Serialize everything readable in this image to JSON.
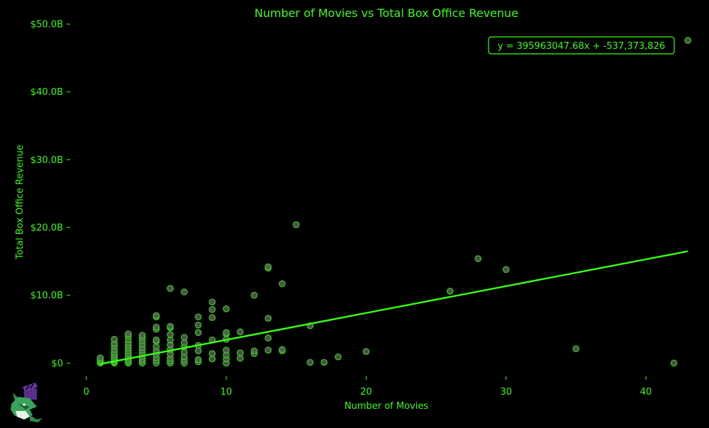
{
  "colors": {
    "background": "#000000",
    "accent": "#39ff14",
    "marker_fill": "#5a5a5a",
    "marker_edge": "#2fd012",
    "logo_purple": "#5b2d8e",
    "logo_green": "#3aa35a"
  },
  "logo": {
    "icon": "fox-mascot-with-clapperboard-icon"
  },
  "chart_data": {
    "type": "scatter",
    "title": "Number of Movies vs Total Box Office Revenue",
    "xlabel": "Number of Movies",
    "ylabel": "Total Box Office Revenue",
    "xlim": [
      -1,
      44
    ],
    "ylim": [
      -0.8,
      50
    ],
    "y_unit": "billions USD",
    "x_ticks": [
      0,
      10,
      20,
      30,
      40
    ],
    "y_ticks": [
      0,
      10,
      20,
      30,
      40,
      50
    ],
    "y_tick_labels": [
      "$0",
      "$10.0B",
      "$20.0B",
      "$30.0B",
      "$40.0B",
      "$50.0B"
    ],
    "grid": false,
    "trendline": {
      "equation_label": "y = 395963047.68x + -537,373,826",
      "slope": 0.39596304768,
      "intercept": -0.537373826,
      "x_range": [
        1,
        43
      ]
    },
    "points": [
      [
        1,
        0.0
      ],
      [
        1,
        0.1
      ],
      [
        1,
        0.2
      ],
      [
        1,
        0.35
      ],
      [
        1,
        0.55
      ],
      [
        1,
        0.75
      ],
      [
        2,
        0.0
      ],
      [
        2,
        0.15
      ],
      [
        2,
        0.3
      ],
      [
        2,
        0.5
      ],
      [
        2,
        0.75
      ],
      [
        2,
        1.0
      ],
      [
        2,
        1.3
      ],
      [
        2,
        1.6
      ],
      [
        2,
        2.0
      ],
      [
        2,
        2.5
      ],
      [
        2,
        2.9
      ],
      [
        2,
        3.5
      ],
      [
        3,
        0.0
      ],
      [
        3,
        0.2
      ],
      [
        3,
        0.45
      ],
      [
        3,
        0.7
      ],
      [
        3,
        1.0
      ],
      [
        3,
        1.4
      ],
      [
        3,
        1.8
      ],
      [
        3,
        2.2
      ],
      [
        3,
        2.6
      ],
      [
        3,
        3.0
      ],
      [
        3,
        3.5
      ],
      [
        3,
        4.0
      ],
      [
        3,
        4.3
      ],
      [
        4,
        0.0
      ],
      [
        4,
        0.3
      ],
      [
        4,
        0.6
      ],
      [
        4,
        1.0
      ],
      [
        4,
        1.4
      ],
      [
        4,
        1.9
      ],
      [
        4,
        2.3
      ],
      [
        4,
        2.8
      ],
      [
        4,
        3.3
      ],
      [
        4,
        3.8
      ],
      [
        4,
        4.1
      ],
      [
        5,
        0.0
      ],
      [
        5,
        0.4
      ],
      [
        5,
        0.8
      ],
      [
        5,
        1.3
      ],
      [
        5,
        1.8
      ],
      [
        5,
        2.4
      ],
      [
        5,
        3.2
      ],
      [
        5,
        3.4
      ],
      [
        5,
        5.0
      ],
      [
        5,
        5.3
      ],
      [
        5,
        6.8
      ],
      [
        5,
        7.0
      ],
      [
        6,
        0.0
      ],
      [
        6,
        0.3
      ],
      [
        6,
        0.7
      ],
      [
        6,
        1.3
      ],
      [
        6,
        2.0
      ],
      [
        6,
        2.7
      ],
      [
        6,
        3.4
      ],
      [
        6,
        4.2
      ],
      [
        6,
        5.2
      ],
      [
        6,
        5.4
      ],
      [
        6,
        11.0
      ],
      [
        7,
        0.0
      ],
      [
        7,
        0.4
      ],
      [
        7,
        0.9
      ],
      [
        7,
        1.6
      ],
      [
        7,
        2.4
      ],
      [
        7,
        3.0
      ],
      [
        7,
        3.8
      ],
      [
        7,
        10.5
      ],
      [
        8,
        0.2
      ],
      [
        8,
        0.5
      ],
      [
        8,
        1.8
      ],
      [
        8,
        2.6
      ],
      [
        8,
        4.5
      ],
      [
        8,
        5.6
      ],
      [
        8,
        6.8
      ],
      [
        9,
        0.6
      ],
      [
        9,
        1.4
      ],
      [
        9,
        3.4
      ],
      [
        9,
        6.7
      ],
      [
        9,
        7.9
      ],
      [
        9,
        9.0
      ],
      [
        10,
        0.0
      ],
      [
        10,
        0.6
      ],
      [
        10,
        1.2
      ],
      [
        10,
        1.9
      ],
      [
        10,
        3.5
      ],
      [
        10,
        4.3
      ],
      [
        10,
        4.5
      ],
      [
        10,
        8.0
      ],
      [
        11,
        0.7
      ],
      [
        11,
        1.5
      ],
      [
        11,
        4.6
      ],
      [
        12,
        1.4
      ],
      [
        12,
        1.8
      ],
      [
        12,
        10.0
      ],
      [
        13,
        1.9
      ],
      [
        13,
        3.7
      ],
      [
        13,
        6.6
      ],
      [
        13,
        14.0
      ],
      [
        13,
        14.2
      ],
      [
        14,
        1.8
      ],
      [
        14,
        2.0
      ],
      [
        14,
        11.7
      ],
      [
        15,
        20.4
      ],
      [
        16,
        0.1
      ],
      [
        16,
        5.5
      ],
      [
        17,
        0.1
      ],
      [
        18,
        0.9
      ],
      [
        20,
        1.7
      ],
      [
        26,
        10.6
      ],
      [
        28,
        15.4
      ],
      [
        30,
        13.8
      ],
      [
        35,
        2.1
      ],
      [
        42,
        0.0
      ],
      [
        43,
        47.6
      ]
    ]
  }
}
